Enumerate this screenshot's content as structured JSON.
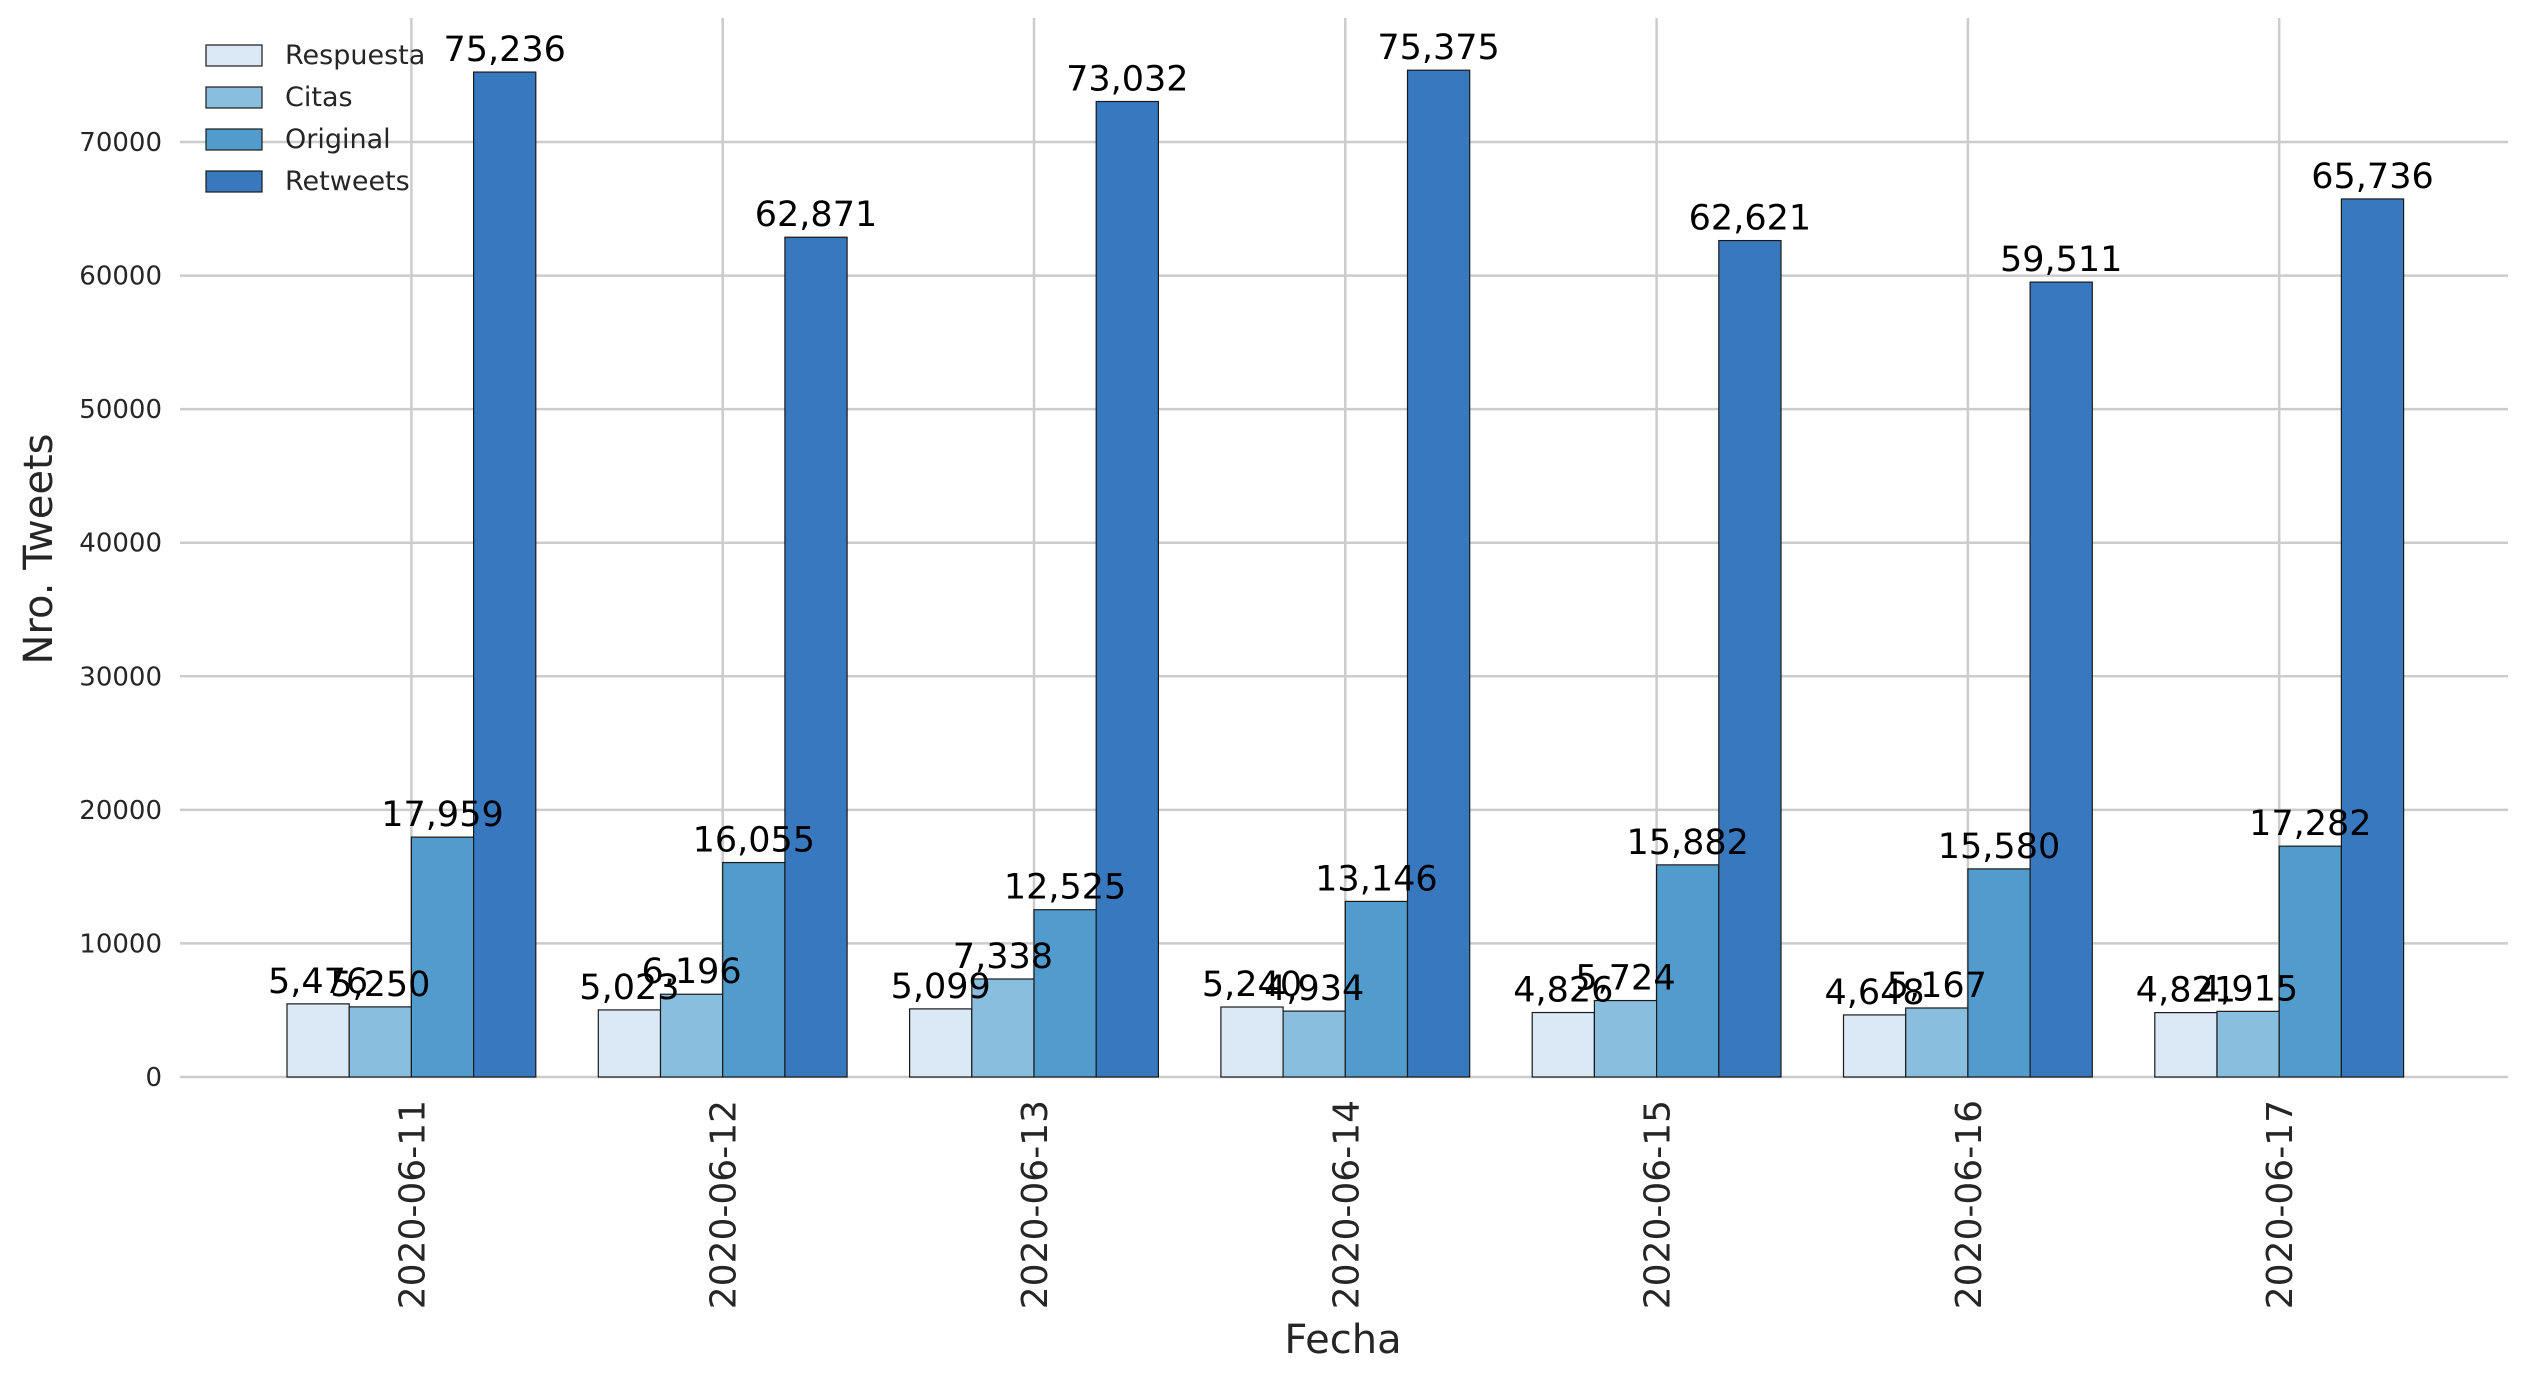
{
  "chart_data": {
    "type": "bar",
    "categories": [
      "2020-06-11",
      "2020-06-12",
      "2020-06-13",
      "2020-06-14",
      "2020-06-15",
      "2020-06-16",
      "2020-06-17"
    ],
    "series": [
      {
        "name": "Respuesta",
        "color": "#dbe8f5",
        "values": [
          5476,
          5023,
          5099,
          5240,
          4826,
          4648,
          4821
        ]
      },
      {
        "name": "Citas",
        "color": "#8abedf",
        "values": [
          5250,
          6196,
          7338,
          4934,
          5724,
          5167,
          4915
        ]
      },
      {
        "name": "Original",
        "color": "#519ccc",
        "values": [
          17959,
          16055,
          12525,
          13146,
          15882,
          15580,
          17282
        ]
      },
      {
        "name": "Retweets",
        "color": "#3778bf",
        "values": [
          75236,
          62871,
          73032,
          75375,
          62621,
          59511,
          65736
        ]
      }
    ],
    "data_labels": [
      [
        "5,476",
        "5,023",
        "5,099",
        "5,240",
        "4,826",
        "4,648",
        "4,821"
      ],
      [
        "5,250",
        "6,196",
        "7,338",
        "4,934",
        "5,724",
        "5,167",
        "4,915"
      ],
      [
        "17,959",
        "16,055",
        "12,525",
        "13,146",
        "15,882",
        "15,580",
        "17,282"
      ],
      [
        "75,236",
        "62,871",
        "73,032",
        "75,375",
        "62,621",
        "59,511",
        "65,736"
      ]
    ],
    "xlabel": "Fecha",
    "ylabel": "Nro. Tweets",
    "ylim": [
      0,
      79000
    ],
    "yticks": [
      0,
      10000,
      20000,
      30000,
      40000,
      50000,
      60000,
      70000
    ],
    "ytick_labels": [
      "0",
      "10000",
      "20000",
      "30000",
      "40000",
      "50000",
      "60000",
      "70000"
    ],
    "grid": true,
    "legend_position": "top-left"
  }
}
